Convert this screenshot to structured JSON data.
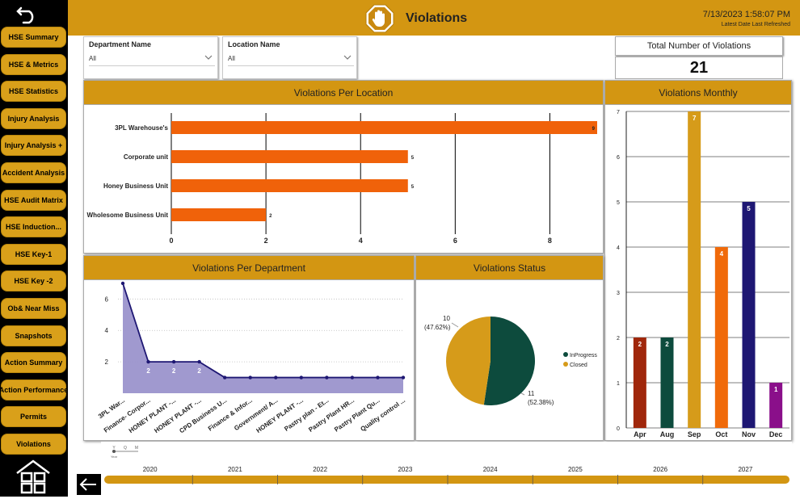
{
  "header": {
    "title": "Violations",
    "datetime": "7/13/2023 1:58:07 PM",
    "refresh_label": "Latest Date Last Refreshed"
  },
  "sidebar": {
    "items": [
      {
        "label": "HSE Summary"
      },
      {
        "label": "HSE & Metrics"
      },
      {
        "label": "HSE Statistics"
      },
      {
        "label": "Injury Analysis"
      },
      {
        "label": "Injury Analysis +"
      },
      {
        "label": "Accident Analysis"
      },
      {
        "label": "HSE Audit Matrix"
      },
      {
        "label": "HSE Induction..."
      },
      {
        "label": "HSE Key-1"
      },
      {
        "label": "HSE Key -2"
      },
      {
        "label": "Ob& Near Miss"
      },
      {
        "label": "Snapshots"
      },
      {
        "label": "Action Summary"
      },
      {
        "label": "Action Performance"
      },
      {
        "label": "Permits"
      },
      {
        "label": "Violations"
      }
    ]
  },
  "filters": {
    "department": {
      "label": "Department Name",
      "value": "All"
    },
    "location": {
      "label": "Location Name",
      "value": "All"
    }
  },
  "kpi": {
    "title": "Total Number of Violations",
    "value": "21"
  },
  "chart_data": [
    {
      "id": "per_location",
      "type": "bar",
      "orientation": "horizontal",
      "title": "Violations Per Location",
      "categories": [
        "3PL Warehouse's",
        "Corporate unit",
        "Honey Business Unit",
        "Wholesome Business Unit"
      ],
      "values": [
        9,
        5,
        5,
        2
      ],
      "xlim": [
        0,
        9
      ],
      "xticks": [
        0,
        2,
        4,
        6,
        8
      ],
      "color": "#f0620a"
    },
    {
      "id": "monthly",
      "type": "bar",
      "title": "Violations Monthly",
      "categories": [
        "Apr",
        "Aug",
        "Sep",
        "Oct",
        "Nov",
        "Dec"
      ],
      "values": [
        2,
        2,
        7,
        4,
        5,
        1
      ],
      "colors": [
        "#a0270b",
        "#0d4b3d",
        "#d69b1a",
        "#f06a0a",
        "#1e1773",
        "#8a0f8a"
      ],
      "ylim": [
        0,
        7
      ],
      "yticks": [
        0,
        1,
        2,
        3,
        4,
        5,
        6,
        7
      ]
    },
    {
      "id": "per_department",
      "type": "area",
      "title": "Violations Per Department",
      "categories": [
        "3PL War...",
        "Finance- Corpor...",
        "HONEY PLANT -...",
        "HONEY PLANT -...",
        "CPD Business U...",
        "Finance & Infor...",
        "Government/ A...",
        "HONEY PLANT -...",
        "Pastry plan - Et...",
        "Pastry Plant HR...",
        "Pastry Plant Qu...",
        "Quality control ..."
      ],
      "values": [
        7,
        2,
        2,
        2,
        1,
        1,
        1,
        1,
        1,
        1,
        1,
        1
      ],
      "point_labels": [
        "",
        "2",
        "2",
        "2",
        "",
        "",
        "",
        "",
        "",
        "",
        "",
        ""
      ],
      "ylim": [
        0,
        7
      ],
      "yticks": [
        2,
        4,
        6
      ],
      "color": "#1e1773",
      "fill": "#9b93cc"
    },
    {
      "id": "status",
      "type": "pie",
      "title": "Violations Status",
      "labels": [
        "InProgress",
        "Closed"
      ],
      "values": [
        11,
        10
      ],
      "percent_labels": [
        "(52.38%)",
        "(47.62%)"
      ],
      "colors": [
        "#0d4b3d",
        "#d69b1a"
      ]
    }
  ],
  "timeline": {
    "years": [
      "2020",
      "2021",
      "2022",
      "2023",
      "2024",
      "2025",
      "2026",
      "2027"
    ],
    "granularity": [
      "Y",
      "Q",
      "M"
    ],
    "granularity_label": "Year"
  }
}
